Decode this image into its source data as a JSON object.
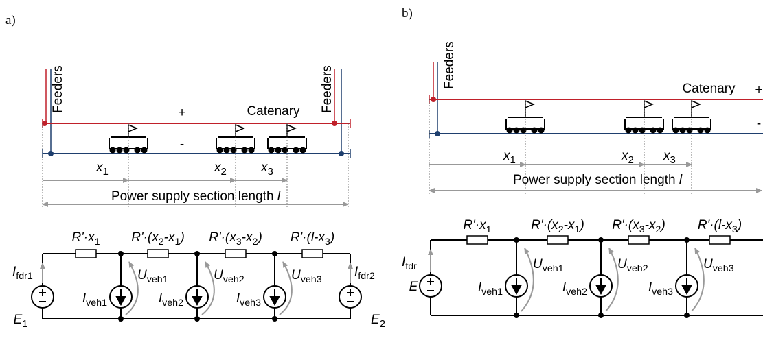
{
  "panels": [
    {
      "label": "a)",
      "feeders": [
        "Feeders",
        "Feeders"
      ],
      "positive": "+",
      "negative": "-",
      "catenary": "Catenary",
      "distances": [
        [
          "x",
          "1"
        ],
        [
          "x",
          "2"
        ],
        [
          "x",
          "3"
        ]
      ],
      "section_length": {
        "text": "Power supply section length ",
        "symbol": "l"
      },
      "resistors": [
        [
          "R'·x",
          "1"
        ],
        [
          "R'·(x",
          "2",
          "-x",
          "1",
          ")"
        ],
        [
          "R'·(x",
          "3",
          "-x",
          "2",
          ")"
        ],
        [
          "R'·(l-x",
          "3",
          ")"
        ]
      ],
      "feeder_currents": [
        [
          "I",
          "fdr1"
        ],
        [
          "I",
          "fdr2"
        ]
      ],
      "sources": [
        [
          "E",
          "1"
        ],
        [
          "E",
          "2"
        ]
      ],
      "vehicle_currents": [
        [
          "I",
          "veh1"
        ],
        [
          "I",
          "veh2"
        ],
        [
          "I",
          "veh3"
        ]
      ],
      "vehicle_voltages": [
        [
          "U",
          "veh1"
        ],
        [
          "U",
          "veh2"
        ],
        [
          "U",
          "veh3"
        ]
      ]
    },
    {
      "label": "b)",
      "feeders": [
        "Feeders"
      ],
      "positive": "+",
      "negative": "-",
      "catenary": "Catenary",
      "distances": [
        [
          "x",
          "1"
        ],
        [
          "x",
          "2"
        ],
        [
          "x",
          "3"
        ]
      ],
      "section_length": {
        "text": "Power supply section length ",
        "symbol": "l"
      },
      "resistors": [
        [
          "R'·x",
          "1"
        ],
        [
          "R'·(x",
          "2",
          "-x",
          "1",
          ")"
        ],
        [
          "R'·(x",
          "3",
          "-x",
          "2",
          ")"
        ],
        [
          "R'·(l-x",
          "3",
          ")"
        ]
      ],
      "feeder_currents": [
        [
          "I",
          "fdr"
        ]
      ],
      "sources": [
        [
          "E"
        ]
      ],
      "vehicle_currents": [
        [
          "I",
          "veh1"
        ],
        [
          "I",
          "veh2"
        ],
        [
          "I",
          "veh3"
        ]
      ],
      "vehicle_voltages": [
        [
          "U",
          "veh1"
        ],
        [
          "U",
          "veh2"
        ],
        [
          "U",
          "veh3"
        ]
      ]
    }
  ]
}
